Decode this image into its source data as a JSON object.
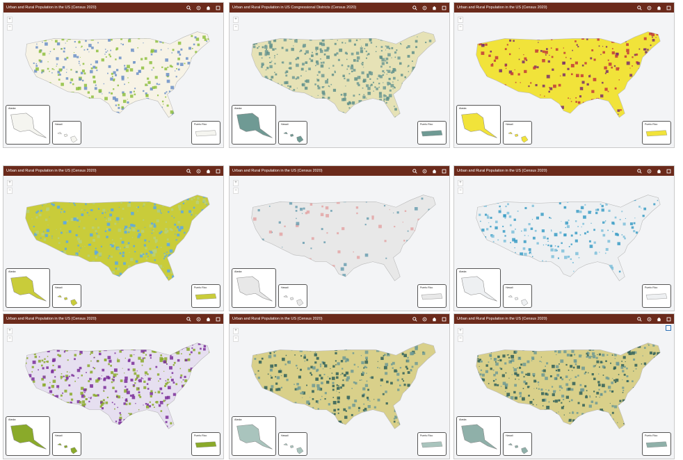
{
  "panels": [
    {
      "title": "Urban and Rural Population in the US (Census 2020)",
      "land": "#f7f3e6",
      "dots": [
        "#8fbf3f",
        "#6b8fc7"
      ],
      "density": 0.55,
      "inset_fill": "#f5f5f0"
    },
    {
      "title": "Urban and Rural Population in US Congressional Districts (Census 2020)",
      "land": "#e6e2b6",
      "dots": [
        "#6f9a94",
        "#5f8f8a"
      ],
      "density": 0.6,
      "inset_fill": "#6f9a94"
    },
    {
      "title": "Urban and Rural Population in the US (Census 2020)",
      "land": "#f1e33a",
      "dots": [
        "#7a2f6b",
        "#c23a3a"
      ],
      "density": 0.3,
      "inset_fill": "#f1e33a"
    },
    {
      "title": "Urban and Rural Population in the US (Census 2020)",
      "land": "#c9cc3a",
      "dots": [
        "#5aa8e8",
        "#b9d07a"
      ],
      "density": 0.6,
      "inset_fill": "#c9cc3a"
    },
    {
      "title": "Urban and Rural Population in the US (Census 2020)",
      "land": "#e8e8e8",
      "dots": [
        "#e3a5a5",
        "#6b9fb0"
      ],
      "density": 0.12,
      "inset_fill": "#e8e8e8"
    },
    {
      "title": "Urban and Rural Population in the US (Census 2020)",
      "land": "#eef0f2",
      "dots": [
        "#3a9cc6",
        "#7ec0da"
      ],
      "density": 0.35,
      "inset_fill": "#eef0f2"
    },
    {
      "title": "Urban and Rural Population in the US (Census 2020)",
      "land": "#e6dff0",
      "dots": [
        "#7a2f9a",
        "#8aaa2a"
      ],
      "density": 0.7,
      "inset_fill": "#8aaa2a"
    },
    {
      "title": "Urban and Rural Population in the US (Census 2020)",
      "land": "#d9d08a",
      "dots": [
        "#2f5f58",
        "#6f9a94"
      ],
      "density": 0.5,
      "inset_fill": "#a9c4bd"
    },
    {
      "title": "Urban and Rural Population in the US (Census 2020)",
      "land": "#d9d08a",
      "dots": [
        "#2f5f58",
        "#6f9a94"
      ],
      "density": 0.65,
      "inset_fill": "#8fb0a9"
    }
  ],
  "insets": {
    "alaska": "Alaska",
    "hawaii": "Hawaii",
    "puerto_rico": "Puerto Rico"
  },
  "icons": [
    "search-icon",
    "share-icon",
    "home-icon",
    "layers-icon"
  ],
  "colors": {
    "header": "#6b2a1b"
  }
}
